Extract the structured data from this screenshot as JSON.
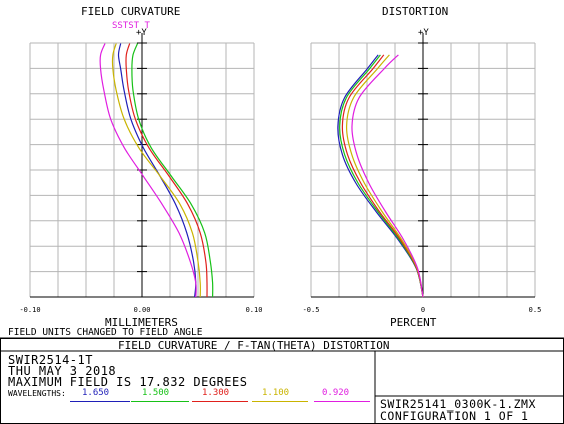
{
  "colors": {
    "blue": "#1f1fb8",
    "green": "#17c117",
    "red": "#e0201b",
    "yellow": "#c9b400",
    "magenta": "#e01ee0",
    "grid": "#b5b5b5"
  },
  "header": {
    "field_curvature_title": "FIELD CURVATURE",
    "distortion_title": "DISTORTION",
    "y_axis_label": "+Y",
    "st_marker": "SSTST T"
  },
  "footer": {
    "fc_xlabel": "MILLIMETERS",
    "fc_note": "FIELD UNITS CHANGED TO FIELD ANGLE",
    "dist_xlabel": "PERCENT",
    "banner": "FIELD CURVATURE / F-TAN(THETA) DISTORTION",
    "line1": "SWIR2514-1T",
    "line2": "THU MAY 3 2018",
    "line3": "MAXIMUM FIELD IS 17.832 DEGREES",
    "wavelengths_label": "WAVELENGTHS:",
    "file": "SWIR25141_0300K-1.ZMX",
    "config": "CONFIGURATION 1 OF 1"
  },
  "wavelengths": [
    {
      "value": "1.650",
      "color": "#1f1fb8"
    },
    {
      "value": "1.500",
      "color": "#17c117"
    },
    {
      "value": "1.300",
      "color": "#e0201b"
    },
    {
      "value": "1.100",
      "color": "#c9b400"
    },
    {
      "value": "0.920",
      "color": "#e01ee0"
    }
  ],
  "chart_data": [
    {
      "type": "line",
      "title": "FIELD CURVATURE",
      "xlabel": "MILLIMETERS",
      "ylabel": "+Y",
      "xlim": [
        -0.1,
        0.1
      ],
      "ylim": [
        0,
        17.832
      ],
      "x_ticks": [
        "-0.10",
        "0.00",
        "0.10"
      ],
      "grid": true,
      "series": [
        {
          "name": "1.650",
          "color": "#1f1fb8",
          "x": [
            0.047,
            0.048,
            0.046,
            0.04,
            0.03,
            0.016,
            0.001,
            -0.01,
            -0.016,
            -0.019,
            -0.021,
            -0.019
          ],
          "y": [
            0,
            1,
            2.5,
            4.5,
            6.5,
            8.5,
            10.5,
            12.5,
            14.5,
            16.0,
            17.0,
            17.8
          ]
        },
        {
          "name": "1.500",
          "color": "#17c117",
          "x": [
            0.063,
            0.063,
            0.061,
            0.056,
            0.044,
            0.026,
            0.008,
            -0.003,
            -0.008,
            -0.009,
            -0.008,
            -0.004
          ],
          "y": [
            0,
            1,
            2.5,
            4.5,
            6.5,
            8.5,
            10.5,
            12.5,
            14.5,
            16.0,
            17.0,
            17.8
          ]
        },
        {
          "name": "1.300",
          "color": "#e0201b",
          "x": [
            0.058,
            0.058,
            0.057,
            0.052,
            0.041,
            0.024,
            0.006,
            -0.006,
            -0.012,
            -0.014,
            -0.014,
            -0.011
          ],
          "y": [
            0,
            1,
            2.5,
            4.5,
            6.5,
            8.5,
            10.5,
            12.5,
            14.5,
            16.0,
            17.0,
            17.8
          ]
        },
        {
          "name": "1.100",
          "color": "#c9b400",
          "x": [
            0.052,
            0.052,
            0.05,
            0.045,
            0.034,
            0.016,
            -0.003,
            -0.016,
            -0.023,
            -0.026,
            -0.026,
            -0.023
          ],
          "y": [
            0,
            1,
            2.5,
            4.5,
            6.5,
            8.5,
            10.5,
            12.5,
            14.5,
            16.0,
            17.0,
            17.8
          ]
        },
        {
          "name": "0.920",
          "color": "#e01ee0",
          "x": [
            0.048,
            0.048,
            0.043,
            0.033,
            0.018,
            0.001,
            -0.016,
            -0.028,
            -0.034,
            -0.037,
            -0.037,
            -0.033
          ],
          "y": [
            0,
            1,
            2.5,
            4.5,
            6.5,
            8.5,
            10.5,
            12.5,
            14.5,
            16.0,
            17.0,
            17.8
          ]
        }
      ]
    },
    {
      "type": "line",
      "title": "DISTORTION",
      "xlabel": "PERCENT",
      "ylabel": "+Y",
      "xlim": [
        -0.5,
        0.5
      ],
      "ylim": [
        0,
        17.832
      ],
      "x_ticks": [
        "-0.5",
        "0",
        "0.5"
      ],
      "grid": true,
      "series": [
        {
          "name": "1.650",
          "color": "#1f1fb8",
          "x": [
            0,
            -0.03,
            -0.11,
            -0.21,
            -0.3,
            -0.36,
            -0.38,
            -0.35,
            -0.25,
            -0.2
          ],
          "y": [
            0,
            2,
            4,
            6,
            8,
            10,
            12,
            14,
            16,
            17.0
          ]
        },
        {
          "name": "1.500",
          "color": "#17c117",
          "x": [
            0,
            -0.029,
            -0.105,
            -0.202,
            -0.29,
            -0.35,
            -0.372,
            -0.342,
            -0.24,
            -0.19
          ],
          "y": [
            0,
            2,
            4,
            6,
            8,
            10,
            12,
            14,
            16,
            17.0
          ]
        },
        {
          "name": "1.300",
          "color": "#e0201b",
          "x": [
            0,
            -0.028,
            -0.1,
            -0.195,
            -0.278,
            -0.337,
            -0.36,
            -0.33,
            -0.225,
            -0.175
          ],
          "y": [
            0,
            2,
            4,
            6,
            8,
            10,
            12,
            14,
            16,
            17.0
          ]
        },
        {
          "name": "1.100",
          "color": "#c9b400",
          "x": [
            0,
            -0.026,
            -0.094,
            -0.183,
            -0.262,
            -0.318,
            -0.341,
            -0.31,
            -0.205,
            -0.15
          ],
          "y": [
            0,
            2,
            4,
            6,
            8,
            10,
            12,
            14,
            16,
            17.0
          ]
        },
        {
          "name": "0.920",
          "color": "#e01ee0",
          "x": [
            0,
            -0.024,
            -0.086,
            -0.168,
            -0.242,
            -0.295,
            -0.317,
            -0.285,
            -0.175,
            -0.11
          ],
          "y": [
            0,
            2,
            4,
            6,
            8,
            10,
            12,
            14,
            16,
            17.0
          ]
        }
      ]
    }
  ]
}
